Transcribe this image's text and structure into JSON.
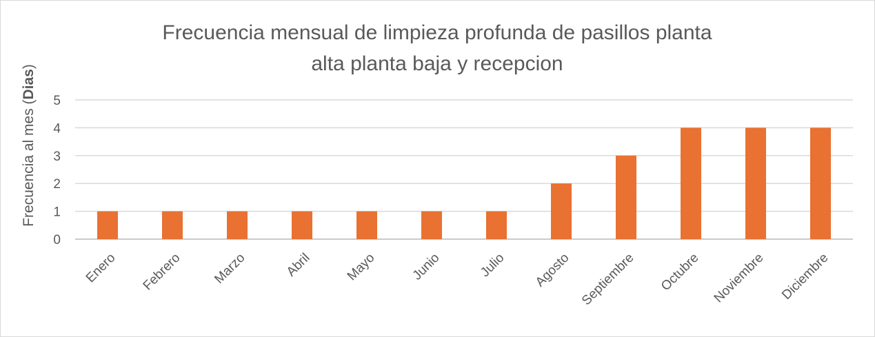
{
  "chart_data": {
    "type": "bar",
    "title_lines": [
      "Frecuencia  mensual de limpieza profunda de pasillos planta",
      "alta planta baja y recepcion"
    ],
    "ylabel_prefix": "Frecuencia al mes (",
    "ylabel_bold": "Dias",
    "ylabel_suffix": ")",
    "xlabel": "",
    "categories": [
      "Enero",
      "Febrero",
      "Marzo",
      "Abril",
      "Mayo",
      "Junio",
      "Julio",
      "Agosto",
      "Septiembre",
      "Octubre",
      "Noviembre",
      "Diciembre"
    ],
    "values": [
      1,
      1,
      1,
      1,
      1,
      1,
      1,
      2,
      3,
      4,
      4,
      4
    ],
    "yticks": [
      "0",
      "1",
      "2",
      "3",
      "4",
      "5"
    ],
    "ylim": [
      0,
      5
    ],
    "grid": true,
    "legend": false,
    "colors": {
      "bar": "#E97132",
      "grid": "#d9d9d9",
      "text": "#595959"
    }
  }
}
